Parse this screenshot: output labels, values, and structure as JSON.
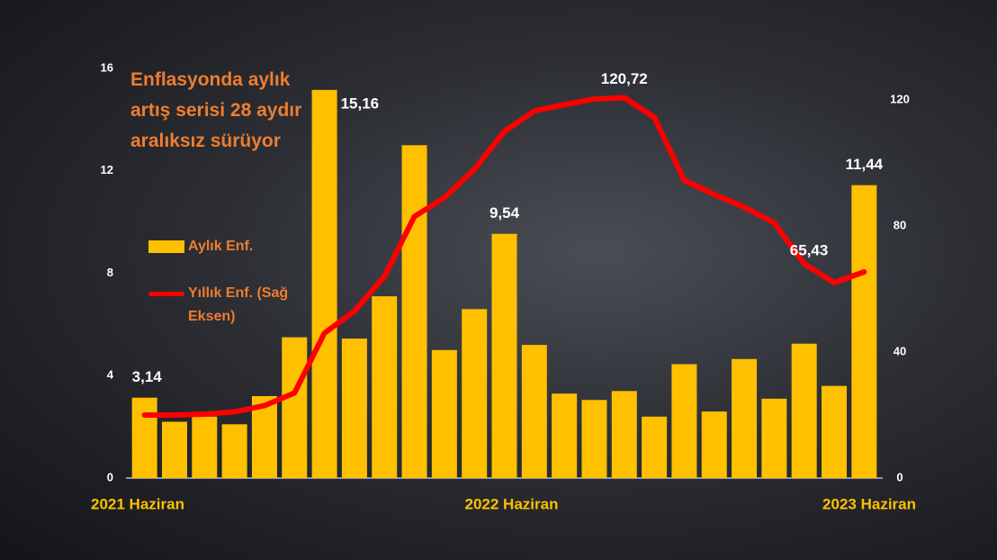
{
  "chart_data": {
    "type": "bar-line",
    "title": "Enflasyonda aylık artış serisi 28 aydır aralıksız sürüyor",
    "categories": [
      "2021 Haziran",
      null,
      null,
      null,
      null,
      null,
      null,
      null,
      null,
      null,
      null,
      null,
      "2022 Haziran",
      null,
      null,
      null,
      null,
      null,
      null,
      null,
      null,
      null,
      null,
      null,
      "2023 Haziran"
    ],
    "series": [
      {
        "name": "Aylık Enf.",
        "type": "bar",
        "color": "#ffc000",
        "values": [
          3.14,
          2.2,
          2.4,
          2.1,
          3.2,
          5.5,
          15.16,
          5.45,
          7.1,
          13.0,
          5.0,
          6.6,
          9.54,
          5.2,
          3.3,
          3.05,
          3.4,
          2.4,
          4.45,
          2.6,
          4.65,
          3.1,
          5.25,
          3.6,
          11.44
        ],
        "value_labels": [
          "3,14",
          null,
          null,
          null,
          null,
          null,
          "15,16",
          null,
          null,
          null,
          null,
          null,
          "9,54",
          null,
          null,
          null,
          null,
          null,
          null,
          null,
          null,
          null,
          null,
          null,
          "11,44"
        ]
      },
      {
        "name": "Yıllık Enf. (Sağ Eksen)",
        "type": "line",
        "axis": "y2",
        "color": "#ff0000",
        "values": [
          20,
          20,
          20.3,
          21,
          23,
          27,
          46,
          53,
          64,
          83,
          89,
          98,
          110,
          116.5,
          118.5,
          120.3,
          120.72,
          114.5,
          94.5,
          90,
          86,
          81,
          68,
          62,
          65.43
        ],
        "value_labels": [
          null,
          null,
          null,
          null,
          null,
          null,
          null,
          null,
          null,
          null,
          null,
          null,
          null,
          null,
          null,
          null,
          "120,72",
          null,
          null,
          null,
          null,
          null,
          null,
          null,
          "65,43"
        ]
      }
    ],
    "ylim": [
      0,
      16
    ],
    "yticks": [
      0,
      4,
      8,
      12,
      16
    ],
    "y2lim": [
      0,
      130
    ],
    "y2ticks": [
      0,
      40,
      80,
      120
    ]
  }
}
